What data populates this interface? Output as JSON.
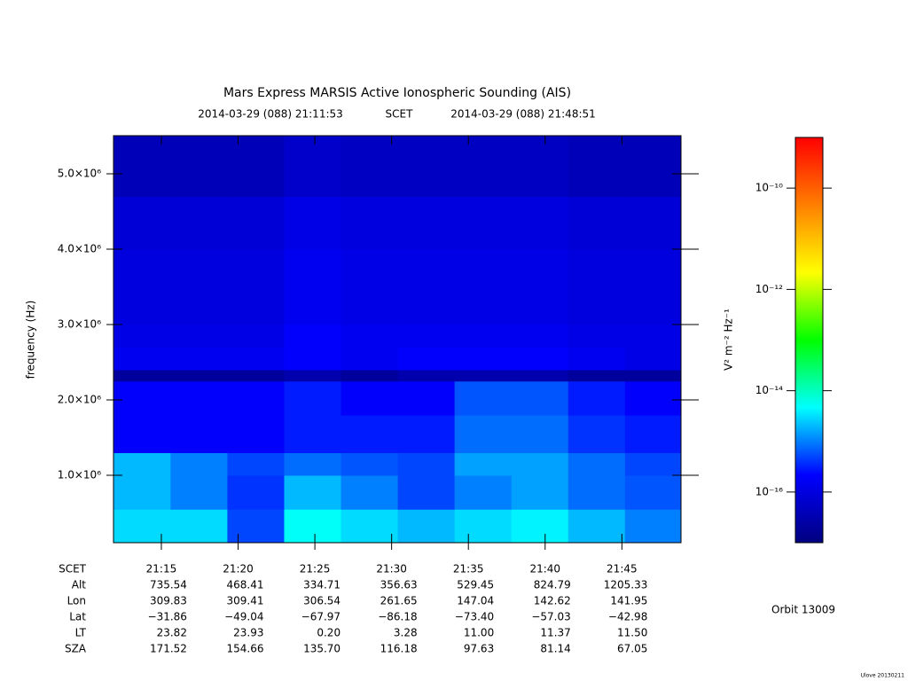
{
  "chart_data": {
    "type": "heatmap",
    "title": "Mars Express MARSIS Active Ionospheric Sounding (AIS)",
    "time_range": {
      "start": "2014-03-29 (088) 21:11:53",
      "label": "SCET",
      "end": "2014-03-29 (088) 21:48:51"
    },
    "y_label": "frequency (Hz)",
    "colorbar_label": "V² m⁻² Hz⁻¹",
    "xlim": [
      1271.883,
      1308.85
    ],
    "xticks": [
      {
        "value": 1275,
        "label": "21:15"
      },
      {
        "value": 1280,
        "label": "21:20"
      },
      {
        "value": 1285,
        "label": "21:25"
      },
      {
        "value": 1290,
        "label": "21:30"
      },
      {
        "value": 1295,
        "label": "21:35"
      },
      {
        "value": 1300,
        "label": "21:40"
      },
      {
        "value": 1305,
        "label": "21:45"
      }
    ],
    "ylim": [
      106000,
      5506000
    ],
    "yticks": [
      {
        "value": 1000000,
        "label": "1.0×10⁶"
      },
      {
        "value": 2000000,
        "label": "2.0×10⁶"
      },
      {
        "value": 3000000,
        "label": "3.0×10⁶"
      },
      {
        "value": 4000000,
        "label": "4.0×10⁶"
      },
      {
        "value": 5000000,
        "label": "5.0×10⁶"
      }
    ],
    "zlim": [
      1e-17,
      1e-09
    ],
    "zscale": "log",
    "zticks": [
      {
        "value": 1e-16,
        "label": "10⁻¹⁶"
      },
      {
        "value": 1e-14,
        "label": "10⁻¹⁴"
      },
      {
        "value": 1e-12,
        "label": "10⁻¹²"
      },
      {
        "value": 1e-10,
        "label": "10⁻¹⁰"
      }
    ],
    "colormap": [
      "#00007f",
      "#0000ff",
      "#00ffff",
      "#00ff00",
      "#ffff00",
      "#ff7f00",
      "#ff0000"
    ],
    "xbins": [
      1271.883,
      1275.6,
      1279.3,
      1283,
      1286.7,
      1290.4,
      1294.1,
      1297.8,
      1301.5,
      1305.2,
      1308.85
    ],
    "ybins": [
      106000,
      550000,
      1000000,
      1300000,
      1800000,
      2250000,
      2400000,
      2700000,
      3000000,
      3500000,
      4000000,
      4700000,
      5506000
    ],
    "values": [
      [
        3e-15,
        3e-15,
        5e-16,
        5e-15,
        3e-15,
        2e-15,
        3e-15,
        4e-15,
        2e-15,
        1e-15
      ],
      [
        2e-15,
        1e-15,
        4e-16,
        2e-15,
        1e-15,
        5e-16,
        1e-15,
        1.5e-15,
        8e-16,
        6e-16
      ],
      [
        2e-15,
        1e-15,
        5e-16,
        8e-16,
        6e-16,
        5e-16,
        1.5e-15,
        1.5e-15,
        8e-16,
        5e-16
      ],
      [
        2e-16,
        2e-16,
        2e-16,
        3e-16,
        3e-16,
        3e-16,
        8e-16,
        8e-16,
        4e-16,
        3e-16
      ],
      [
        2e-16,
        2e-16,
        2e-16,
        3e-16,
        2e-16,
        2e-16,
        6e-16,
        6e-16,
        3e-16,
        2e-16
      ],
      [
        2e-17,
        2e-17,
        2e-17,
        3e-17,
        2e-17,
        3e-17,
        3e-17,
        3e-17,
        2e-17,
        2e-17
      ],
      [
        1.5e-16,
        1.5e-16,
        1.5e-16,
        2e-16,
        1.5e-16,
        2e-16,
        2e-16,
        2e-16,
        1.5e-16,
        1.2e-16
      ],
      [
        1.2e-16,
        1.2e-16,
        1.2e-16,
        2e-16,
        1.5e-16,
        1.5e-16,
        1.5e-16,
        1.5e-16,
        1.2e-16,
        1.2e-16
      ],
      [
        1e-16,
        1e-16,
        1e-16,
        1.5e-16,
        1.2e-16,
        1.2e-16,
        1.2e-16,
        1.2e-16,
        1e-16,
        1e-16
      ],
      [
        1e-16,
        1e-16,
        1e-16,
        1.5e-16,
        1.2e-16,
        1.2e-16,
        1.2e-16,
        1.2e-16,
        1e-16,
        1e-16
      ],
      [
        8e-17,
        8e-17,
        8e-17,
        1.2e-16,
        1e-16,
        1e-16,
        1e-16,
        1e-16,
        8e-17,
        8e-17
      ],
      [
        4e-17,
        4e-17,
        4e-17,
        6e-17,
        5e-17,
        5e-17,
        5e-17,
        5e-17,
        4e-17,
        4e-17
      ]
    ],
    "ephemeris": {
      "labels": [
        "SCET",
        "Alt",
        "Lon",
        "Lat",
        "LT",
        "SZA"
      ],
      "rows": [
        [
          "735.54",
          "468.41",
          "334.71",
          "356.63",
          "529.45",
          "824.79",
          "1205.33"
        ],
        [
          "309.83",
          "309.41",
          "306.54",
          "261.65",
          "147.04",
          "142.62",
          "141.95"
        ],
        [
          "−31.86",
          "−49.04",
          "−67.97",
          "−86.18",
          "−73.40",
          "−57.03",
          "−42.98"
        ],
        [
          "23.82",
          "23.93",
          "0.20",
          "3.28",
          "11.00",
          "11.37",
          "11.50"
        ],
        [
          "171.52",
          "154.66",
          "135.70",
          "116.18",
          "97.63",
          "81.14",
          "67.05"
        ]
      ]
    },
    "orbit": "Orbit 13009",
    "credit": "Ulove 20130211"
  }
}
